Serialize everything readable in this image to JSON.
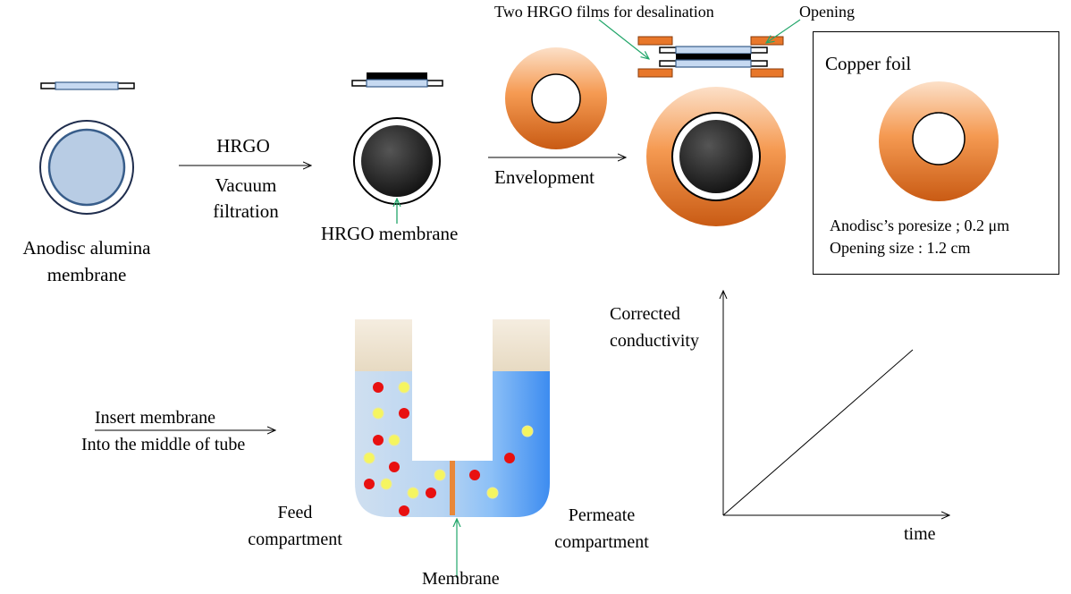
{
  "step1": {
    "label_line1": "Anodisc alumina",
    "label_line2": "membrane"
  },
  "arrow1": {
    "top_label": "HRGO",
    "bottom_line1": "Vacuum",
    "bottom_line2": "filtration"
  },
  "step2": {
    "membrane_label": "HRGO membrane"
  },
  "arrow2": {
    "label": "Envelopment"
  },
  "step3": {
    "films_label": "Two HRGO films for desalination",
    "opening_label": "Opening"
  },
  "info_box": {
    "title": "Copper foil",
    "line1": "Anodisc’s poresize ; 0.2 μm",
    "line2": "Opening size : 1.2 cm"
  },
  "insert_arrow": {
    "line1": "Insert membrane",
    "line2": "Into the middle of tube"
  },
  "u_tube": {
    "feed_line1": "Feed",
    "feed_line2": "compartment",
    "permeate_line1": "Permeate",
    "permeate_line2": "compartment",
    "membrane_label": "Membrane"
  },
  "graph": {
    "ylabel_line1": "Corrected",
    "ylabel_line2": "conductivity",
    "xlabel": "time"
  },
  "colors": {
    "copper_light": "#fbb98a",
    "copper_dark": "#d9661c",
    "alumina_fill": "#b8cce4",
    "alumina_stroke": "#385d8a",
    "film_blue": "#c6d9f1",
    "hrgo_black": "#1a1a1a",
    "feed_fill": "#c9dcef",
    "permeate_fill": "#5ea0f0",
    "ion_red": "#e81010",
    "ion_yellow": "#f5f560",
    "plug": "#efe4cf",
    "separator": "#e8883a",
    "pointer_green": "#22a66a"
  }
}
